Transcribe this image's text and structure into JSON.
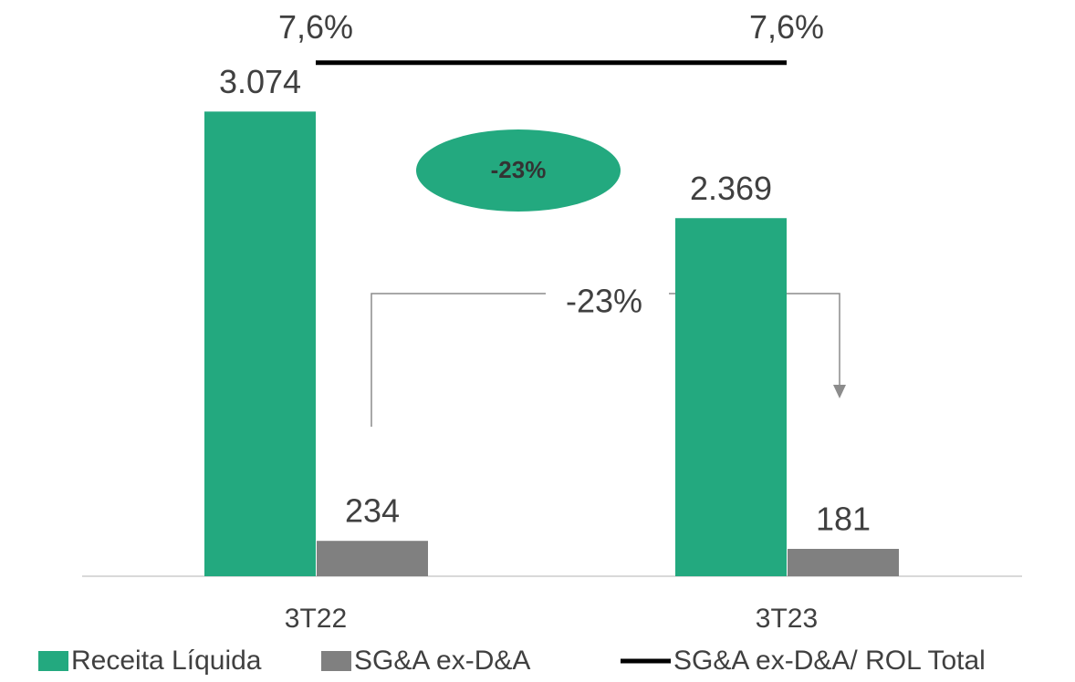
{
  "chart_data": {
    "type": "bar",
    "categories": [
      "3T22",
      "3T23"
    ],
    "series": [
      {
        "name": "Receita Líquida",
        "color": "#23a97f",
        "values": [
          3074,
          2369
        ],
        "value_labels": [
          "3.074",
          "2.369"
        ]
      },
      {
        "name": "SG&A ex-D&A",
        "color": "#808080",
        "values": [
          234,
          181
        ]
      },
      {
        "name": "SG&A ex-D&A/ ROL Total",
        "type": "line",
        "axis": "y2",
        "color": "#000000",
        "values": [
          7.6,
          7.6
        ],
        "value_labels": [
          "7,6%",
          "7,6%"
        ]
      }
    ],
    "ylim": [
      0,
      3800
    ],
    "y2lim": [
      0,
      8.5
    ],
    "legend": "bottom",
    "annotations": [
      "-23%",
      "-23%"
    ]
  }
}
